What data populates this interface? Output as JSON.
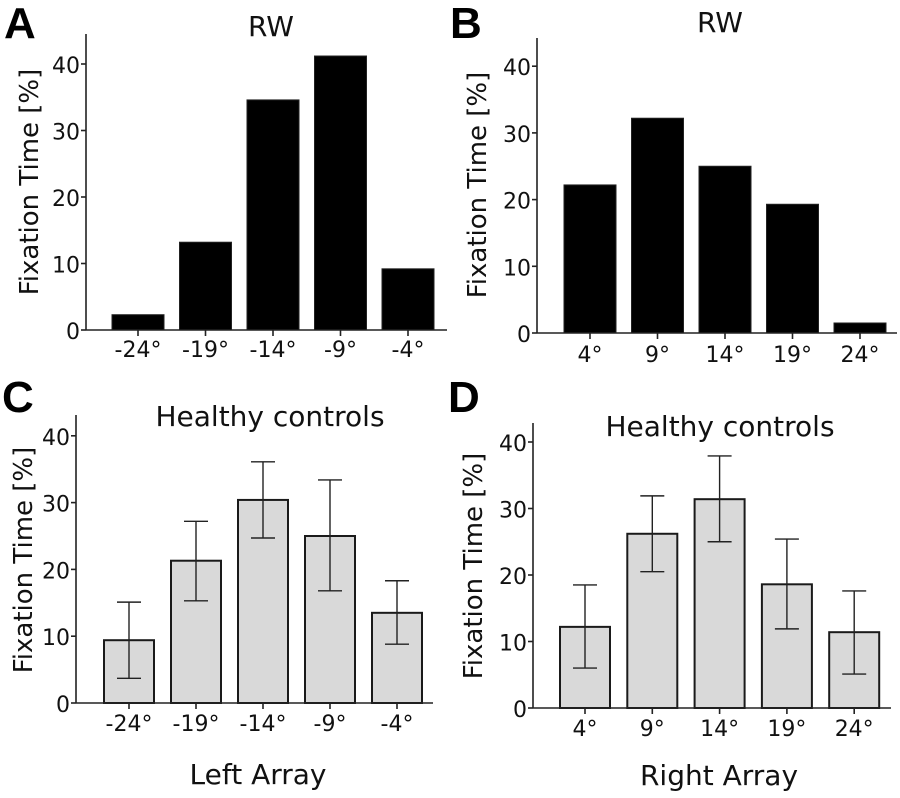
{
  "chart_data": [
    {
      "panel": "A",
      "type": "bar",
      "title": "RW",
      "xlabel": "",
      "ylabel": "Fixation Time [%]",
      "categories": [
        "-24°",
        "-19°",
        "-14°",
        "-9°",
        "-4°"
      ],
      "values": [
        2.3,
        13.2,
        34.6,
        41.2,
        9.2
      ],
      "yticks": [
        "0",
        "10",
        "20",
        "30",
        "40"
      ],
      "ylim": [
        0,
        44
      ],
      "bar_color": "#000000",
      "error_bars": false,
      "grid": false
    },
    {
      "panel": "B",
      "type": "bar",
      "title": "RW",
      "xlabel": "",
      "ylabel": "Fixation Time [%]",
      "categories": [
        "4°",
        "9°",
        "14°",
        "19°",
        "24°"
      ],
      "values": [
        22.2,
        32.2,
        25.0,
        19.3,
        1.5
      ],
      "yticks": [
        "0",
        "10",
        "20",
        "30",
        "40"
      ],
      "ylim": [
        0,
        44
      ],
      "bar_color": "#000000",
      "error_bars": false,
      "grid": false
    },
    {
      "panel": "C",
      "type": "bar",
      "title": "Healthy controls",
      "xlabel": "Left Array",
      "ylabel": "Fixation Time [%]",
      "categories": [
        "-24°",
        "-19°",
        "-14°",
        "-9°",
        "-4°"
      ],
      "values": [
        9.4,
        21.3,
        30.4,
        25.0,
        13.5
      ],
      "err_low": [
        3.7,
        15.3,
        24.7,
        16.8,
        8.8
      ],
      "err_high": [
        15.1,
        27.2,
        36.1,
        33.4,
        18.3
      ],
      "yticks": [
        "0",
        "10",
        "20",
        "30",
        "40"
      ],
      "ylim": [
        0,
        43
      ],
      "bar_color": "#d9d9d9",
      "error_bars": true,
      "grid": false
    },
    {
      "panel": "D",
      "type": "bar",
      "title": "Healthy controls",
      "xlabel": "Right Array",
      "ylabel": "Fixation Time [%]",
      "categories": [
        "4°",
        "9°",
        "14°",
        "19°",
        "24°"
      ],
      "values": [
        12.2,
        26.2,
        31.4,
        18.6,
        11.4
      ],
      "err_low": [
        6.0,
        20.5,
        25.0,
        11.9,
        5.1
      ],
      "err_high": [
        18.5,
        31.9,
        37.9,
        25.4,
        17.6
      ],
      "yticks": [
        "0",
        "10",
        "20",
        "30",
        "40"
      ],
      "ylim": [
        0,
        43
      ],
      "bar_color": "#d9d9d9",
      "error_bars": true,
      "grid": false
    }
  ]
}
